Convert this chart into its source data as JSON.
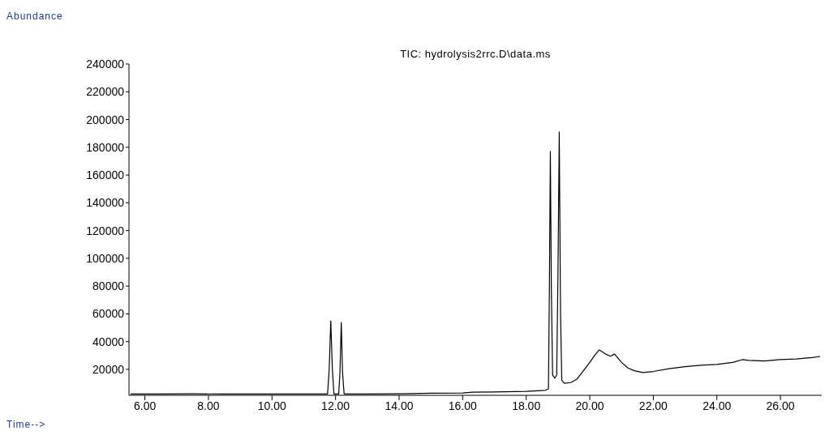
{
  "chart_data": {
    "type": "line",
    "title": "TIC: hydrolysis2rrc.D\\data.ms",
    "xlabel": "Time-->",
    "ylabel": "Abundance",
    "x": [
      5.55,
      6.5,
      7.5,
      8.5,
      9.5,
      10.5,
      11.5,
      11.75,
      11.8,
      11.85,
      11.9,
      11.95,
      12.1,
      12.14,
      12.18,
      12.22,
      12.27,
      13,
      14,
      15,
      16,
      16.3,
      17,
      18,
      18.6,
      18.7,
      18.73,
      18.76,
      18.79,
      18.83,
      18.9,
      18.96,
      19,
      19.04,
      19.08,
      19.12,
      19.2,
      19.4,
      19.6,
      19.8,
      20,
      20.15,
      20.3,
      20.5,
      20.65,
      20.78,
      21,
      21.2,
      21.4,
      21.67,
      22,
      22.5,
      23,
      23.5,
      24,
      24.5,
      24.8,
      25,
      25.5,
      26,
      26.5,
      27,
      27.25
    ],
    "series": [
      {
        "color": "#000000",
        "values": [
          2200,
          2300,
          2400,
          2200,
          2300,
          2300,
          2200,
          2300,
          20000,
          55000,
          20000,
          2300,
          2300,
          18000,
          53800,
          18000,
          2300,
          2300,
          2400,
          2800,
          3000,
          3600,
          3700,
          4200,
          4900,
          6000,
          80000,
          177000,
          80000,
          16000,
          13600,
          16000,
          90000,
          191000,
          60000,
          12000,
          10000,
          10500,
          13000,
          19000,
          25000,
          30000,
          34000,
          31000,
          29500,
          31000,
          25000,
          21000,
          19000,
          17700,
          18500,
          20500,
          22000,
          23000,
          23500,
          25000,
          27000,
          26500,
          26000,
          27000,
          27500,
          28500,
          29300
        ]
      }
    ],
    "xlim": [
      5.5,
      27.3
    ],
    "ylim": [
      1300,
      240000
    ],
    "xticks": [
      {
        "value": 6,
        "label": "6.00"
      },
      {
        "value": 8,
        "label": "8.00"
      },
      {
        "value": 10,
        "label": "10.00"
      },
      {
        "value": 12,
        "label": "12.00"
      },
      {
        "value": 14,
        "label": "14.00"
      },
      {
        "value": 16,
        "label": "16.00"
      },
      {
        "value": 18,
        "label": "18.00"
      },
      {
        "value": 20,
        "label": "20.00"
      },
      {
        "value": 22,
        "label": "22.00"
      },
      {
        "value": 24,
        "label": "24.00"
      },
      {
        "value": 26,
        "label": "26.00"
      }
    ],
    "yticks": [
      20000,
      40000,
      60000,
      80000,
      100000,
      120000,
      140000,
      160000,
      180000,
      200000,
      220000,
      240000
    ],
    "grid": false,
    "legend": false,
    "marker": "none",
    "line_style": "solid"
  }
}
